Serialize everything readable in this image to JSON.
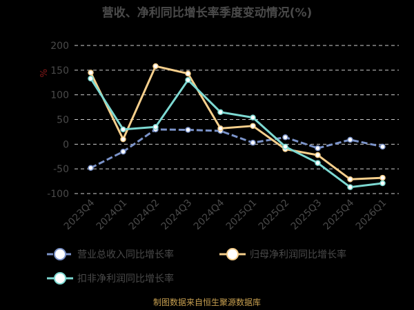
{
  "chart_data": {
    "type": "line",
    "title": "营收、净利同比增长率季度变动情况(%)",
    "unit_label": "%",
    "categories": [
      "2023Q4",
      "2024Q1",
      "2024Q2",
      "2024Q3",
      "2024Q4",
      "2025Q1",
      "2025Q2",
      "2025Q3",
      "2025Q4",
      "2026Q1"
    ],
    "yticks": [
      200,
      150,
      100,
      50,
      0,
      -50,
      -100
    ],
    "ylim": [
      -100,
      200
    ],
    "grid": true,
    "legend_position": "bottom",
    "series": [
      {
        "name": "营业总收入同比增长率",
        "color": "#7b93c9",
        "dashed": true,
        "values": [
          -48,
          -15,
          30,
          29,
          27,
          3,
          14,
          -8,
          9,
          -5
        ]
      },
      {
        "name": "归母净利润同比增长率",
        "color": "#f6cf8c",
        "dashed": false,
        "values": [
          145,
          10,
          158,
          143,
          32,
          37,
          -10,
          -22,
          -71,
          -68
        ]
      },
      {
        "name": "扣非净利润同比增长率",
        "color": "#7dd9d2",
        "dashed": false,
        "values": [
          133,
          30,
          35,
          130,
          65,
          54,
          -5,
          -38,
          -87,
          -79
        ]
      }
    ],
    "source": "制图数据来自恒生聚源数据库"
  }
}
